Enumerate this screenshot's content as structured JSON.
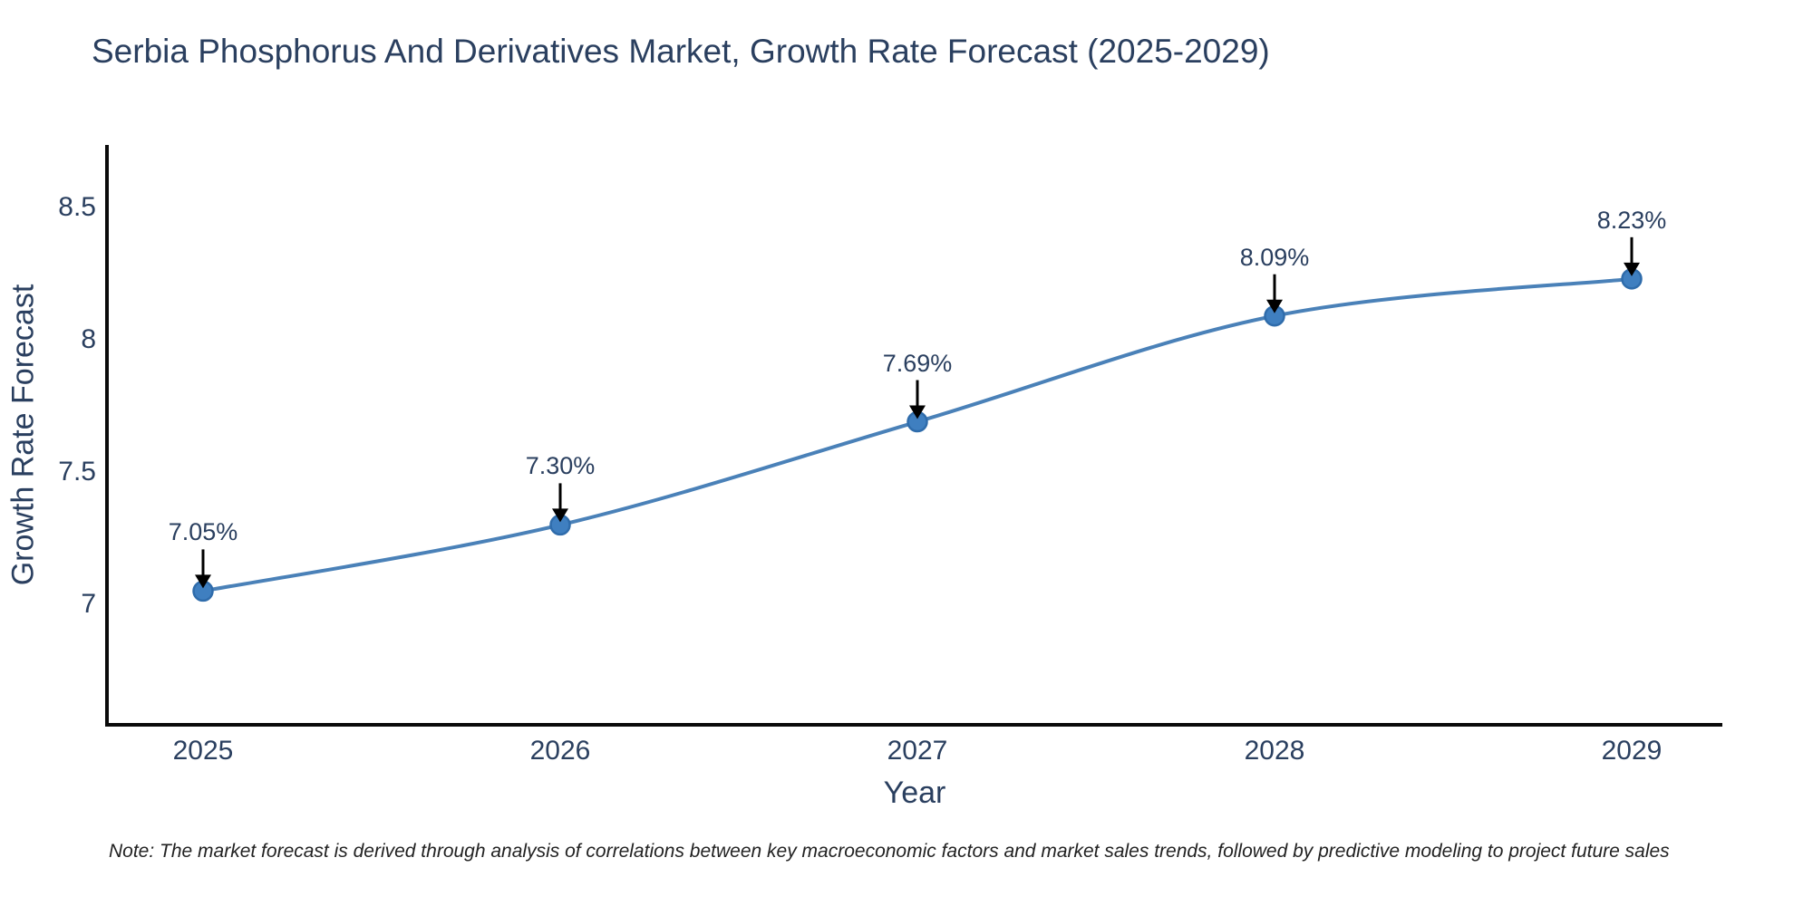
{
  "title": "Serbia Phosphorus And Derivatives Market, Growth Rate Forecast (2025-2029)",
  "note": "Note: The market forecast is derived through analysis of correlations between key macroeconomic factors and market sales trends, followed by predictive modeling to project future sales",
  "chart_data": {
    "type": "line",
    "title": "Serbia Phosphorus And Derivatives Market, Growth Rate Forecast (2025-2029)",
    "xlabel": "Year",
    "ylabel": "Growth Rate Forecast",
    "x": [
      2025,
      2026,
      2027,
      2028,
      2029
    ],
    "values": [
      7.05,
      7.3,
      7.69,
      8.09,
      8.23
    ],
    "point_labels": [
      "7.05%",
      "7.30%",
      "7.69%",
      "8.09%",
      "8.23%"
    ],
    "yticks": [
      7,
      7.5,
      8,
      8.5
    ],
    "ylim": [
      6.55,
      8.73
    ],
    "line_shape": "spline",
    "grid": false,
    "legend_position": "none",
    "annotation_style": "label-above-with-down-arrow",
    "colors": {
      "line": "#4a81b8",
      "marker": "#3f7fc0",
      "marker_edge": "#2f6cab",
      "text": "#2a3f5f",
      "axis": "#0a0a0a",
      "arrow": "#000000",
      "note": "#222222",
      "background": "#ffffff"
    }
  }
}
